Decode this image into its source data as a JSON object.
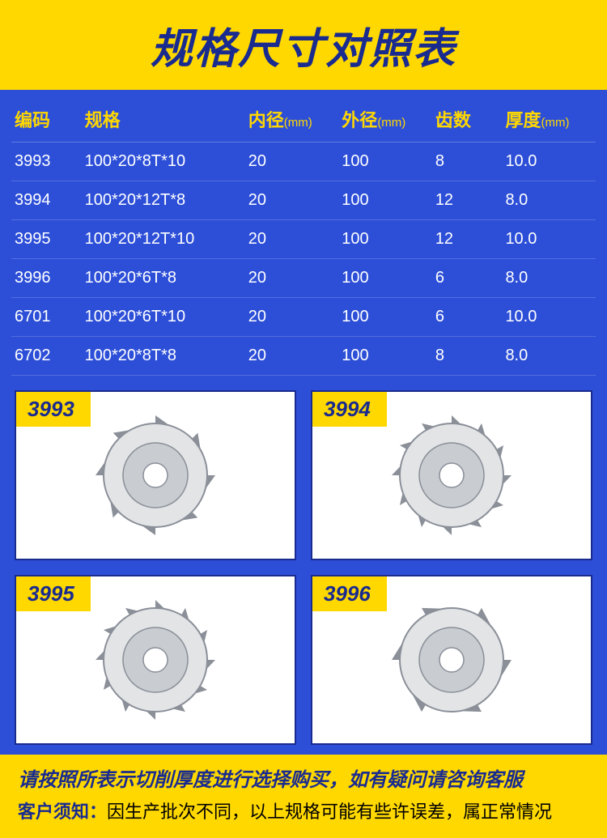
{
  "colors": {
    "brand_yellow": "#ffd800",
    "brand_blue_bg": "#2d4fd8",
    "brand_blue_dark": "#1a2b8f",
    "white": "#ffffff",
    "row_divider": "rgba(255,255,255,0.18)",
    "blade_fill": "#e2e4e6",
    "blade_stroke": "#8a8f98",
    "blade_hub": "#c9ccd1"
  },
  "header": {
    "title": "规格尺寸对照表"
  },
  "table": {
    "columns": [
      {
        "label": "编码",
        "unit": ""
      },
      {
        "label": "规格",
        "unit": ""
      },
      {
        "label": "内径",
        "unit": "(mm)"
      },
      {
        "label": "外径",
        "unit": "(mm)"
      },
      {
        "label": "齿数",
        "unit": ""
      },
      {
        "label": "厚度",
        "unit": "(mm)"
      }
    ],
    "rows": [
      {
        "code": "3993",
        "spec": "100*20*8T*10",
        "inner": "20",
        "outer": "100",
        "teeth": "8",
        "thick": "10.0"
      },
      {
        "code": "3994",
        "spec": "100*20*12T*8",
        "inner": "20",
        "outer": "100",
        "teeth": "12",
        "thick": "8.0"
      },
      {
        "code": "3995",
        "spec": "100*20*12T*10",
        "inner": "20",
        "outer": "100",
        "teeth": "12",
        "thick": "10.0"
      },
      {
        "code": "3996",
        "spec": "100*20*6T*8",
        "inner": "20",
        "outer": "100",
        "teeth": "6",
        "thick": "8.0"
      },
      {
        "code": "6701",
        "spec": "100*20*6T*10",
        "inner": "20",
        "outer": "100",
        "teeth": "6",
        "thick": "10.0"
      },
      {
        "code": "6702",
        "spec": "100*20*8T*8",
        "inner": "20",
        "outer": "100",
        "teeth": "8",
        "thick": "8.0"
      }
    ]
  },
  "gallery": [
    {
      "label": "3993",
      "teeth": 8
    },
    {
      "label": "3994",
      "teeth": 12
    },
    {
      "label": "3995",
      "teeth": 12
    },
    {
      "label": "3996",
      "teeth": 6
    }
  ],
  "footer": {
    "line1": "请按照所表示切削厚度进行选择购买，如有疑问请咨询客服",
    "line2_lead": "客户须知：",
    "line2_rest": "因生产批次不同，以上规格可能有些许误差，属正常情况"
  }
}
